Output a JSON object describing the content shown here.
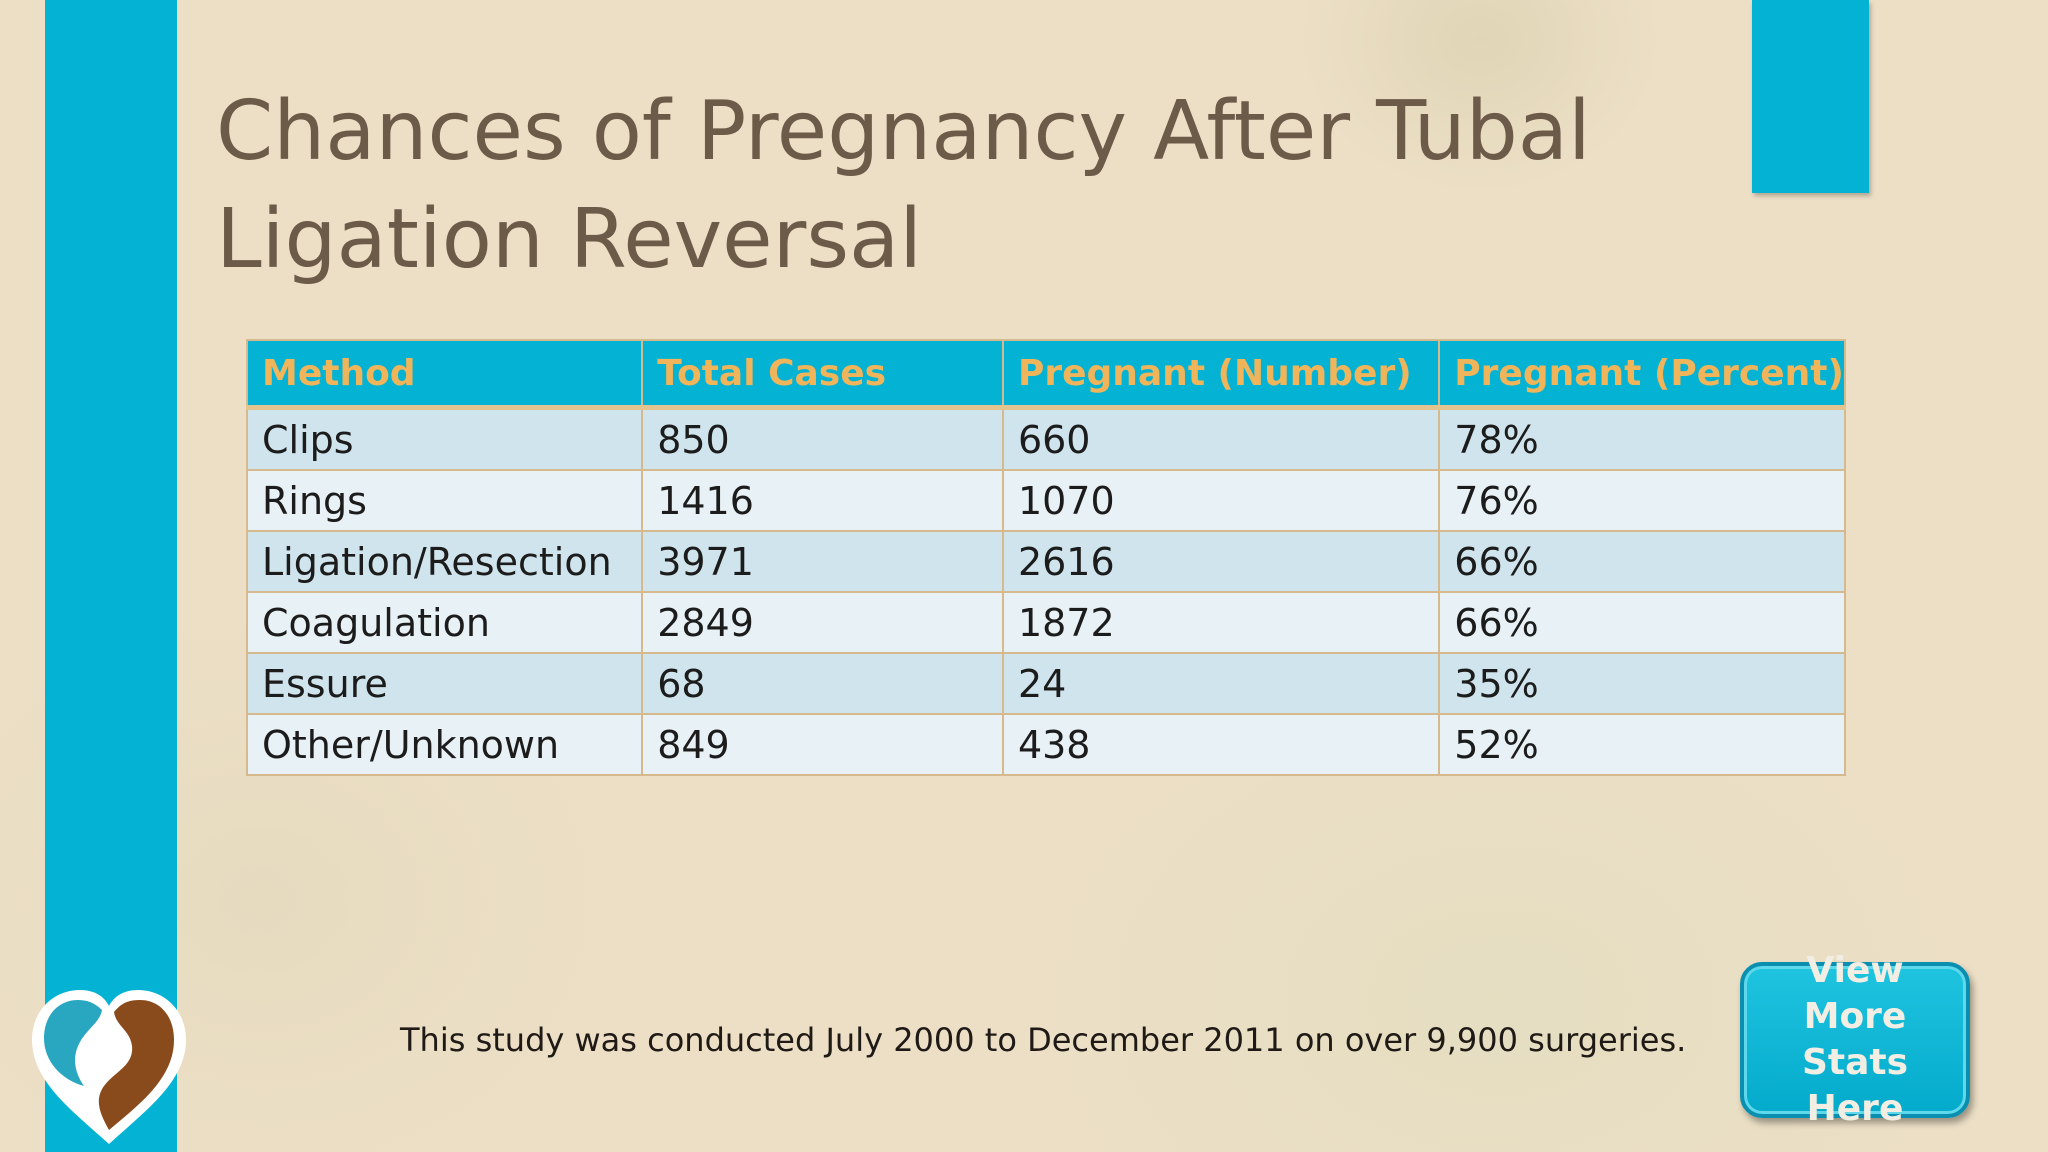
{
  "slide": {
    "title": "Chances of Pregnancy After Tubal Ligation Reversal",
    "footnote": "This study was conducted July 2000 to December 2011 on over 9,900 surgeries.",
    "cta_label": "View More Stats Here"
  },
  "table": {
    "headers": [
      "Method",
      "Total Cases",
      "Pregnant (Number)",
      "Pregnant (Percent)"
    ],
    "rows": [
      [
        "Clips",
        "850",
        "660",
        "78%"
      ],
      [
        "Rings",
        "1416",
        "1070",
        "76%"
      ],
      [
        "Ligation/Resection",
        "3971",
        "2616",
        "66%"
      ],
      [
        "Coagulation",
        "2849",
        "1872",
        "66%"
      ],
      [
        "Essure",
        "68",
        "24",
        "35%"
      ],
      [
        "Other/Unknown",
        "849",
        "438",
        "52%"
      ]
    ]
  },
  "colors": {
    "accent_blue": "#04b3d3",
    "title_brown": "#6d5b4a",
    "header_text_orange": "#f0b45a",
    "row_light_blue": "#cfe4ec",
    "row_pale_blue": "#e8f1f5",
    "logo_teal": "#2aa7c0",
    "logo_brown": "#8a4b1c"
  }
}
